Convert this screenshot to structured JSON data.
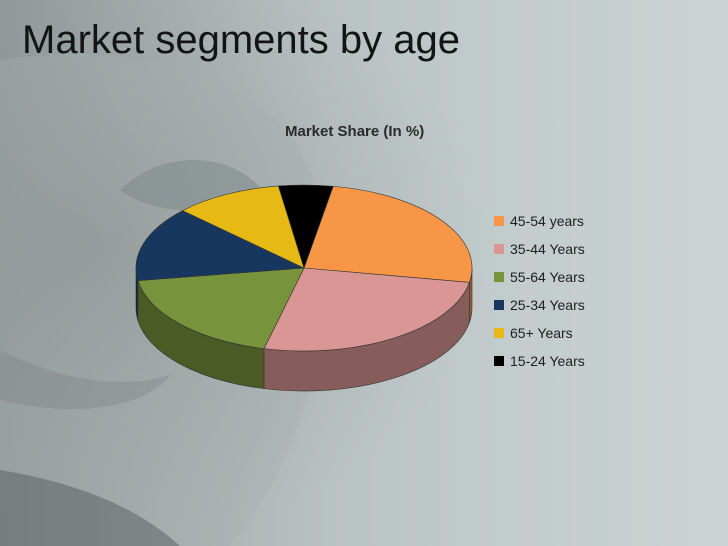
{
  "slide": {
    "title": "Market segments by age"
  },
  "chart_data": {
    "type": "pie",
    "title": "Market Share (In %)",
    "legend_position": "right",
    "slices": [
      {
        "label": "45-54 years",
        "value": 24,
        "color": "#f79646"
      },
      {
        "label": "35-44 Years",
        "value": 25,
        "color": "#d99694"
      },
      {
        "label": "55-64 Years",
        "value": 18,
        "color": "#77933c"
      },
      {
        "label": "25-34 Years",
        "value": 14,
        "color": "#17375e"
      },
      {
        "label": "65+ Years",
        "value": 10,
        "color": "#e6b914"
      },
      {
        "label": "15-24 Years",
        "value": 5,
        "color": "#000000"
      }
    ]
  }
}
